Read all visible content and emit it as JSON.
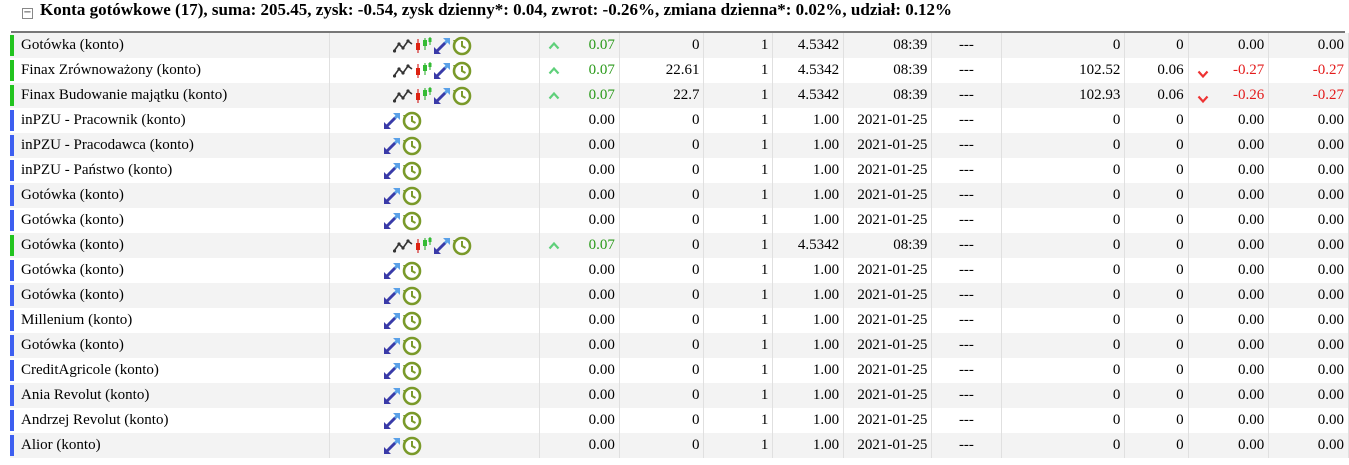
{
  "header": {
    "collapse_symbol": "−",
    "title": "Konta gotówkowe (17), suma: 205.45, zysk: -0.54, zysk dzienny*: 0.04, zwrot: -0.26%, zmiana dzienna*: 0.02%, udział: 0.12%"
  },
  "colors": {
    "live": "#22c41f",
    "static": "#3d5ff0",
    "up": "#2a9a1a",
    "down": "#e31b1b"
  },
  "rows": [
    {
      "name": "Gotówka (konto)",
      "type": "live",
      "trend": "up",
      "change": "0.07",
      "c1": "0",
      "c2": "1",
      "price": "4.5342",
      "time": "08:39",
      "dash": "---",
      "value": "0",
      "profit": "0",
      "trend2": "",
      "ret": "0.00",
      "day": "0.00"
    },
    {
      "name": "Finax Zrównoważony (konto)",
      "type": "live",
      "trend": "up",
      "change": "0.07",
      "c1": "22.61",
      "c2": "1",
      "price": "4.5342",
      "time": "08:39",
      "dash": "---",
      "value": "102.52",
      "profit": "0.06",
      "trend2": "down",
      "ret": "-0.27",
      "day": "-0.27"
    },
    {
      "name": "Finax Budowanie majątku (konto)",
      "type": "live",
      "trend": "up",
      "change": "0.07",
      "c1": "22.7",
      "c2": "1",
      "price": "4.5342",
      "time": "08:39",
      "dash": "---",
      "value": "102.93",
      "profit": "0.06",
      "trend2": "down",
      "ret": "-0.26",
      "day": "-0.27"
    },
    {
      "name": "inPZU - Pracownik (konto)",
      "type": "static",
      "trend": "",
      "change": "0.00",
      "c1": "0",
      "c2": "1",
      "price": "1.00",
      "time": "2021-01-25",
      "dash": "---",
      "value": "0",
      "profit": "0",
      "trend2": "",
      "ret": "0.00",
      "day": "0.00"
    },
    {
      "name": "inPZU - Pracodawca (konto)",
      "type": "static",
      "trend": "",
      "change": "0.00",
      "c1": "0",
      "c2": "1",
      "price": "1.00",
      "time": "2021-01-25",
      "dash": "---",
      "value": "0",
      "profit": "0",
      "trend2": "",
      "ret": "0.00",
      "day": "0.00"
    },
    {
      "name": "inPZU - Państwo (konto)",
      "type": "static",
      "trend": "",
      "change": "0.00",
      "c1": "0",
      "c2": "1",
      "price": "1.00",
      "time": "2021-01-25",
      "dash": "---",
      "value": "0",
      "profit": "0",
      "trend2": "",
      "ret": "0.00",
      "day": "0.00"
    },
    {
      "name": "Gotówka (konto)",
      "type": "static",
      "trend": "",
      "change": "0.00",
      "c1": "0",
      "c2": "1",
      "price": "1.00",
      "time": "2021-01-25",
      "dash": "---",
      "value": "0",
      "profit": "0",
      "trend2": "",
      "ret": "0.00",
      "day": "0.00"
    },
    {
      "name": "Gotówka (konto)",
      "type": "static",
      "trend": "",
      "change": "0.00",
      "c1": "0",
      "c2": "1",
      "price": "1.00",
      "time": "2021-01-25",
      "dash": "---",
      "value": "0",
      "profit": "0",
      "trend2": "",
      "ret": "0.00",
      "day": "0.00"
    },
    {
      "name": "Gotówka (konto)",
      "type": "live",
      "trend": "up",
      "change": "0.07",
      "c1": "0",
      "c2": "1",
      "price": "4.5342",
      "time": "08:39",
      "dash": "---",
      "value": "0",
      "profit": "0",
      "trend2": "",
      "ret": "0.00",
      "day": "0.00"
    },
    {
      "name": "Gotówka (konto)",
      "type": "static",
      "trend": "",
      "change": "0.00",
      "c1": "0",
      "c2": "1",
      "price": "1.00",
      "time": "2021-01-25",
      "dash": "---",
      "value": "0",
      "profit": "0",
      "trend2": "",
      "ret": "0.00",
      "day": "0.00"
    },
    {
      "name": "Gotówka (konto)",
      "type": "static",
      "trend": "",
      "change": "0.00",
      "c1": "0",
      "c2": "1",
      "price": "1.00",
      "time": "2021-01-25",
      "dash": "---",
      "value": "0",
      "profit": "0",
      "trend2": "",
      "ret": "0.00",
      "day": "0.00"
    },
    {
      "name": "Millenium (konto)",
      "type": "static",
      "trend": "",
      "change": "0.00",
      "c1": "0",
      "c2": "1",
      "price": "1.00",
      "time": "2021-01-25",
      "dash": "---",
      "value": "0",
      "profit": "0",
      "trend2": "",
      "ret": "0.00",
      "day": "0.00"
    },
    {
      "name": "Gotówka (konto)",
      "type": "static",
      "trend": "",
      "change": "0.00",
      "c1": "0",
      "c2": "1",
      "price": "1.00",
      "time": "2021-01-25",
      "dash": "---",
      "value": "0",
      "profit": "0",
      "trend2": "",
      "ret": "0.00",
      "day": "0.00"
    },
    {
      "name": "CreditAgricole (konto)",
      "type": "static",
      "trend": "",
      "change": "0.00",
      "c1": "0",
      "c2": "1",
      "price": "1.00",
      "time": "2021-01-25",
      "dash": "---",
      "value": "0",
      "profit": "0",
      "trend2": "",
      "ret": "0.00",
      "day": "0.00"
    },
    {
      "name": "Ania Revolut (konto)",
      "type": "static",
      "trend": "",
      "change": "0.00",
      "c1": "0",
      "c2": "1",
      "price": "1.00",
      "time": "2021-01-25",
      "dash": "---",
      "value": "0",
      "profit": "0",
      "trend2": "",
      "ret": "0.00",
      "day": "0.00"
    },
    {
      "name": "Andrzej Revolut (konto)",
      "type": "static",
      "trend": "",
      "change": "0.00",
      "c1": "0",
      "c2": "1",
      "price": "1.00",
      "time": "2021-01-25",
      "dash": "---",
      "value": "0",
      "profit": "0",
      "trend2": "",
      "ret": "0.00",
      "day": "0.00"
    },
    {
      "name": "Alior (konto)",
      "type": "static",
      "trend": "",
      "change": "0.00",
      "c1": "0",
      "c2": "1",
      "price": "1.00",
      "time": "2021-01-25",
      "dash": "---",
      "value": "0",
      "profit": "0",
      "trend2": "",
      "ret": "0.00",
      "day": "0.00"
    }
  ]
}
